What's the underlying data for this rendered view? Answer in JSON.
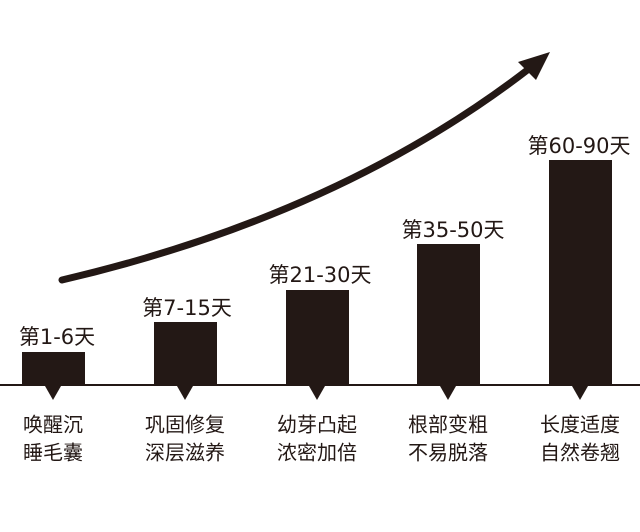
{
  "stages": [
    {
      "label": "第1-6天",
      "lines": [
        "唤醒沉",
        "睡毛囊"
      ]
    },
    {
      "label": "第7-15天",
      "lines": [
        "巩固修复",
        "深层滋养"
      ]
    },
    {
      "label": "第21-30天",
      "lines": [
        "幼芽凸起",
        "浓密加倍"
      ]
    },
    {
      "label": "第35-50天",
      "lines": [
        "根部变粗",
        "不易脱落"
      ]
    },
    {
      "label": "第60-90天",
      "lines": [
        "长度适度",
        "自然卷翘"
      ]
    }
  ]
}
